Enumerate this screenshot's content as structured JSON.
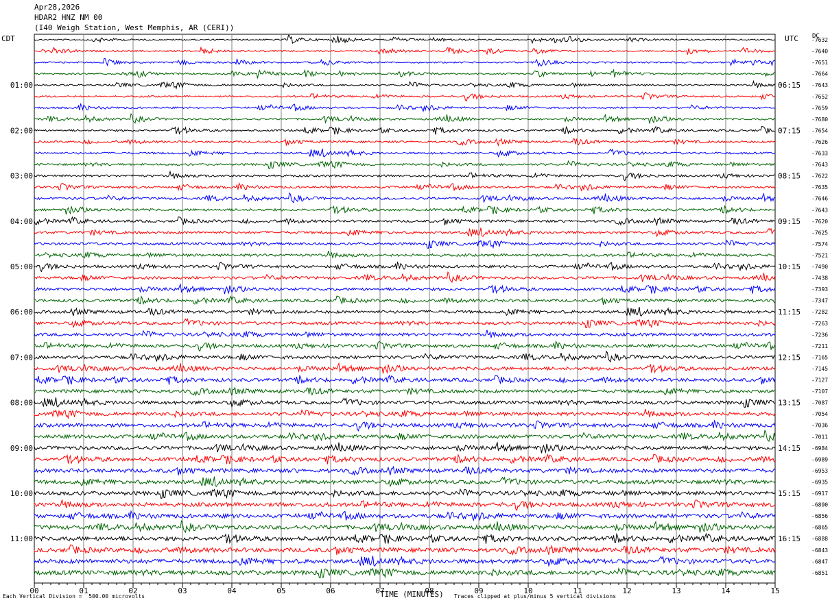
{
  "header": {
    "date": "Apr28,2026",
    "station": "HDAR2 HNZ NM 00",
    "location": "(I40 Weigh Station, West Memphis, AR (CERI))"
  },
  "left_timezone": "CDT",
  "right_timezone": "UTC",
  "dc_label": "DC",
  "footer": {
    "scale_note": "Each Vertical Division =  500.00 microvolts",
    "clip_note": "Traces clipped at plus/minus 5 vertical divisions"
  },
  "colors": {
    "trace_cycle": [
      "#000000",
      "#ff0000",
      "#0000ff",
      "#006400"
    ],
    "grid": "#808080"
  },
  "chart_data": {
    "type": "line",
    "title": "HDAR2 HNZ NM 00",
    "xlabel": "TIME (MINUTES)",
    "xlim": [
      0,
      15
    ],
    "x_ticks": [
      "00",
      "01",
      "02",
      "03",
      "04",
      "05",
      "06",
      "07",
      "08",
      "09",
      "10",
      "11",
      "12",
      "13",
      "14",
      "15"
    ],
    "traces_per_hour": 4,
    "left_hour_labels": [
      "01:00",
      "02:00",
      "03:00",
      "04:00",
      "05:00",
      "06:00",
      "07:00",
      "08:00",
      "09:00",
      "10:00",
      "11:00"
    ],
    "right_hour_labels": [
      "06:15",
      "07:15",
      "08:15",
      "09:15",
      "10:15",
      "11:15",
      "12:15",
      "13:15",
      "14:15",
      "15:15",
      "16:15"
    ],
    "dc_offsets": [
      -7632,
      -7640,
      -7651,
      -7664,
      -7643,
      -7652,
      -7659,
      -7680,
      -7654,
      -7626,
      -7633,
      -7643,
      -7622,
      -7635,
      -7646,
      -7643,
      -7620,
      -7625,
      -7574,
      -7521,
      -7490,
      -7438,
      -7393,
      -7347,
      -7282,
      -7263,
      -7236,
      -7211,
      -7165,
      -7145,
      -7127,
      -7107,
      -7087,
      -7054,
      -7036,
      -7011,
      -6984,
      -6989,
      -6953,
      -6935,
      -6917,
      -6890,
      -6856,
      -6865,
      -6888,
      -6843,
      -6847,
      -6851
    ]
  }
}
